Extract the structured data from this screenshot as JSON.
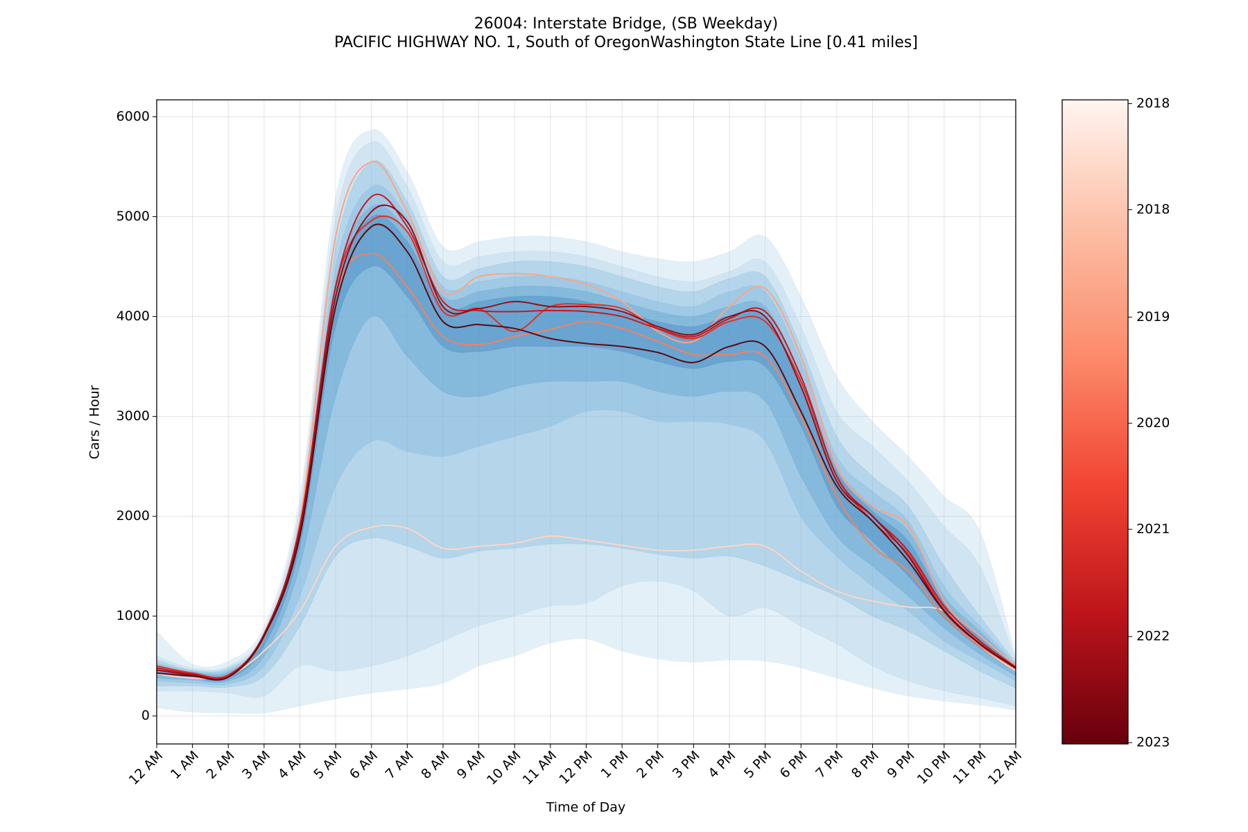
{
  "chart_data": {
    "type": "line",
    "title": "26004: Interstate Bridge, (SB Weekday)",
    "subtitle": "PACIFIC HIGHWAY NO. 1, South of OregonWashington State Line [0.41 miles]",
    "xlabel": "Time of Day",
    "ylabel": "Cars / Hour",
    "x": [
      0,
      1,
      2,
      3,
      4,
      5,
      6,
      7,
      8,
      9,
      10,
      11,
      12,
      13,
      14,
      15,
      16,
      17,
      18,
      19,
      20,
      21,
      22,
      23,
      24
    ],
    "xlim": [
      0,
      24
    ],
    "xticks": [
      {
        "value": 0,
        "label": "12 AM"
      },
      {
        "value": 1,
        "label": "1 AM"
      },
      {
        "value": 2,
        "label": "2 AM"
      },
      {
        "value": 3,
        "label": "3 AM"
      },
      {
        "value": 4,
        "label": "4 AM"
      },
      {
        "value": 5,
        "label": "5 AM"
      },
      {
        "value": 6,
        "label": "6 AM"
      },
      {
        "value": 7,
        "label": "7 AM"
      },
      {
        "value": 8,
        "label": "8 AM"
      },
      {
        "value": 9,
        "label": "9 AM"
      },
      {
        "value": 10,
        "label": "10 AM"
      },
      {
        "value": 11,
        "label": "11 AM"
      },
      {
        "value": 12,
        "label": "12 PM"
      },
      {
        "value": 13,
        "label": "1 PM"
      },
      {
        "value": 14,
        "label": "2 PM"
      },
      {
        "value": 15,
        "label": "3 PM"
      },
      {
        "value": 16,
        "label": "4 PM"
      },
      {
        "value": 17,
        "label": "5 PM"
      },
      {
        "value": 18,
        "label": "6 PM"
      },
      {
        "value": 19,
        "label": "7 PM"
      },
      {
        "value": 20,
        "label": "8 PM"
      },
      {
        "value": 21,
        "label": "9 PM"
      },
      {
        "value": 22,
        "label": "10 PM"
      },
      {
        "value": 23,
        "label": "11 PM"
      },
      {
        "value": 24,
        "label": "12 AM"
      }
    ],
    "ylim": [
      -280,
      6170
    ],
    "yticks": [
      0,
      1000,
      2000,
      3000,
      4000,
      5000,
      6000
    ],
    "grid": true,
    "bands": [
      {
        "color": "#9ecae1",
        "lower": [
          80,
          40,
          30,
          30,
          100,
          170,
          230,
          270,
          330,
          500,
          600,
          730,
          770,
          650,
          570,
          540,
          560,
          550,
          480,
          380,
          280,
          200,
          150,
          110,
          60
        ],
        "upper": [
          850,
          520,
          550,
          900,
          2200,
          5200,
          5870,
          5450,
          4700,
          4750,
          4800,
          4800,
          4750,
          4650,
          4580,
          4550,
          4650,
          4800,
          4200,
          3400,
          2950,
          2600,
          2200,
          1850,
          600
        ]
      },
      {
        "color": "#9ecae1",
        "lower": [
          250,
          250,
          230,
          200,
          500,
          450,
          500,
          600,
          750,
          900,
          1000,
          1100,
          1130,
          1300,
          1350,
          1250,
          1000,
          1080,
          900,
          720,
          500,
          350,
          250,
          180,
          100
        ],
        "upper": [
          600,
          480,
          500,
          850,
          2100,
          5000,
          5750,
          5300,
          4550,
          4600,
          4650,
          4650,
          4600,
          4500,
          4400,
          4350,
          4450,
          4550,
          3900,
          3050,
          2700,
          2350,
          1900,
          1500,
          560
        ]
      },
      {
        "color": "#6baed6",
        "lower": [
          300,
          300,
          290,
          400,
          900,
          1600,
          1780,
          1700,
          1580,
          1650,
          1680,
          1720,
          1720,
          1680,
          1620,
          1580,
          1600,
          1500,
          1350,
          1200,
          1000,
          850,
          650,
          450,
          280
        ],
        "upper": [
          560,
          460,
          480,
          800,
          2000,
          4700,
          5550,
          5150,
          4400,
          4480,
          4550,
          4550,
          4500,
          4400,
          4300,
          4250,
          4380,
          4400,
          3700,
          2800,
          2400,
          2100,
          1500,
          1000,
          540
        ]
      },
      {
        "color": "#6baed6",
        "lower": [
          350,
          330,
          320,
          500,
          1200,
          2300,
          2750,
          2650,
          2600,
          2700,
          2800,
          2900,
          3050,
          3050,
          2950,
          2950,
          2920,
          2750,
          2000,
          1600,
          1300,
          1050,
          750,
          550,
          350
        ],
        "upper": [
          530,
          450,
          460,
          780,
          1950,
          4500,
          5300,
          5000,
          4300,
          4350,
          4400,
          4400,
          4350,
          4250,
          4150,
          4100,
          4250,
          4250,
          3550,
          2600,
          2250,
          1950,
          1300,
          900,
          520
        ]
      },
      {
        "color": "#4292c6",
        "lower": [
          380,
          360,
          350,
          600,
          1500,
          3200,
          4000,
          3600,
          3250,
          3200,
          3300,
          3350,
          3350,
          3350,
          3250,
          3200,
          3250,
          3150,
          2400,
          1800,
          1500,
          1200,
          880,
          620,
          400
        ],
        "upper": [
          510,
          440,
          440,
          760,
          1900,
          4350,
          5100,
          4850,
          4200,
          4250,
          4300,
          4300,
          4250,
          4150,
          4050,
          4000,
          4100,
          4100,
          3400,
          2500,
          2100,
          1850,
          1200,
          850,
          500
        ]
      },
      {
        "color": "#2171b5",
        "lower": [
          410,
          380,
          370,
          700,
          1700,
          3900,
          4500,
          4200,
          3700,
          3650,
          3700,
          3700,
          3700,
          3650,
          3550,
          3480,
          3550,
          3500,
          2900,
          2100,
          1750,
          1400,
          980,
          680,
          440
        ],
        "upper": [
          490,
          430,
          420,
          800,
          1900,
          4250,
          5000,
          4750,
          4100,
          4150,
          4200,
          4200,
          4150,
          4050,
          3950,
          3900,
          4000,
          4000,
          3300,
          2450,
          2050,
          1750,
          1150,
          800,
          490
        ]
      }
    ],
    "series": [
      {
        "color": "#fdd5c4",
        "values": [
          420,
          380,
          400,
          650,
          1050,
          1700,
          1890,
          1880,
          1680,
          1700,
          1730,
          1800,
          1760,
          1710,
          1660,
          1660,
          1700,
          1700,
          1450,
          1250,
          1150,
          1090,
          1050,
          700,
          450
        ]
      },
      {
        "color": "#fca486",
        "values": [
          480,
          420,
          410,
          800,
          1950,
          4800,
          5550,
          5050,
          4250,
          4400,
          4430,
          4400,
          4320,
          4150,
          3850,
          3750,
          4100,
          4280,
          3600,
          2500,
          2100,
          1900,
          1150,
          800,
          510
        ]
      },
      {
        "color": "#f6805d",
        "values": [
          470,
          420,
          410,
          790,
          1850,
          4200,
          4630,
          4300,
          3800,
          3720,
          3800,
          3870,
          3950,
          3880,
          3750,
          3620,
          3620,
          3600,
          3000,
          2200,
          1700,
          1450,
          1000,
          700,
          470
        ]
      },
      {
        "color": "#e32f27",
        "values": [
          500,
          430,
          410,
          820,
          1900,
          4300,
          4960,
          4850,
          4050,
          4080,
          3850,
          4100,
          4120,
          4080,
          3880,
          3780,
          3950,
          3950,
          3350,
          2400,
          1950,
          1620,
          1070,
          730,
          490
        ]
      },
      {
        "color": "#c8171c",
        "values": [
          480,
          420,
          400,
          820,
          1900,
          4300,
          5200,
          4900,
          4150,
          4060,
          4050,
          4060,
          4050,
          4000,
          3880,
          3800,
          3980,
          4050,
          3400,
          2400,
          2000,
          1650,
          1100,
          750,
          490
        ]
      },
      {
        "color": "#980c13",
        "values": [
          460,
          410,
          390,
          800,
          1850,
          4200,
          5050,
          4950,
          4100,
          4080,
          4150,
          4100,
          4100,
          4050,
          3900,
          3820,
          4000,
          4000,
          3300,
          2350,
          2000,
          1600,
          1050,
          720,
          480
        ]
      },
      {
        "color": "#5a0a14",
        "values": [
          430,
          400,
          390,
          800,
          1800,
          4100,
          4900,
          4650,
          3950,
          3920,
          3880,
          3780,
          3730,
          3700,
          3640,
          3540,
          3700,
          3700,
          3050,
          2300,
          1950,
          1550,
          1050,
          720,
          480
        ]
      }
    ],
    "colorbar": {
      "lim": [
        2017.97,
        2023.01
      ],
      "colors": [
        "#fff5f0",
        "#fcbea5",
        "#fc8a6a",
        "#f14432",
        "#bc141a",
        "#67000d"
      ],
      "ticks": [
        {
          "value": 2018.0,
          "label": "2018"
        },
        {
          "value": 2018.83,
          "label": "2018"
        },
        {
          "value": 2019.67,
          "label": "2019"
        },
        {
          "value": 2020.5,
          "label": "2020"
        },
        {
          "value": 2021.33,
          "label": "2021"
        },
        {
          "value": 2022.17,
          "label": "2022"
        },
        {
          "value": 2023.0,
          "label": "2023"
        }
      ]
    }
  }
}
